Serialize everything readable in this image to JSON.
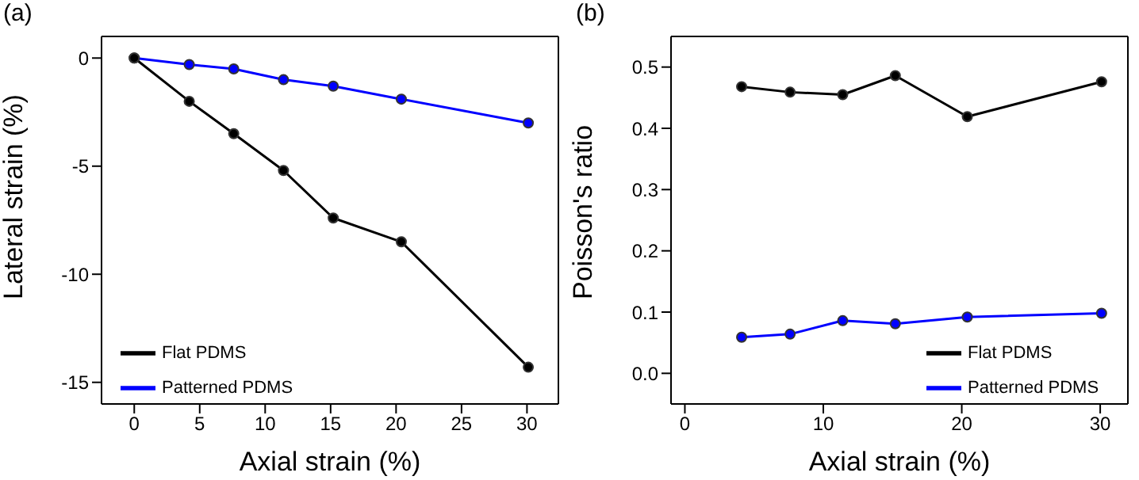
{
  "chart_data": [
    {
      "type": "line",
      "title": "(a)",
      "xlabel": "Axial strain (%)",
      "ylabel": "Lateral strain (%)",
      "x": [
        0,
        4.2,
        7.6,
        11.4,
        15.2,
        20.4,
        30.1
      ],
      "series": [
        {
          "name": "Patterned PDMS",
          "color": "#0000ff",
          "values": [
            0,
            -0.3,
            -0.5,
            -1.0,
            -1.3,
            -1.9,
            -3.0
          ]
        },
        {
          "name": "Flat PDMS",
          "color": "#000000",
          "values": [
            0,
            -2.0,
            -3.5,
            -5.2,
            -7.4,
            -8.5,
            -14.3
          ]
        }
      ],
      "xlim": [
        -2.5,
        32.4
      ],
      "xticks": [
        0,
        5,
        10,
        15,
        20,
        25,
        30
      ],
      "ylim": [
        -16,
        1
      ],
      "yticks": [
        0,
        -5,
        -10,
        -15
      ],
      "grid": false,
      "legend": "bottom left",
      "marker": "circle",
      "line_style": "solid"
    },
    {
      "type": "line",
      "title": "(b)",
      "xlabel": "Axial strain (%)",
      "ylabel": "Poisson's ratio",
      "x": [
        4.1,
        7.6,
        11.4,
        15.2,
        20.4,
        30.1
      ],
      "series": [
        {
          "name": "Patterned PDMS",
          "color": "#0000ff",
          "values": [
            0.059,
            0.064,
            0.086,
            0.081,
            0.092,
            0.098
          ]
        },
        {
          "name": "Flat PDMS",
          "color": "#000000",
          "values": [
            0.468,
            0.459,
            0.455,
            0.486,
            0.419,
            0.476
          ]
        }
      ],
      "xlim": [
        -1,
        32
      ],
      "xticks": [
        0,
        10,
        20,
        30
      ],
      "ylim": [
        -0.05,
        0.55
      ],
      "yticks": [
        {
          "value": 0,
          "label": "0.0"
        },
        0.1,
        0.2,
        0.3,
        0.4,
        0.5
      ],
      "grid": false,
      "legend": "bottom right",
      "marker": "circle",
      "line_style": "solid"
    }
  ]
}
